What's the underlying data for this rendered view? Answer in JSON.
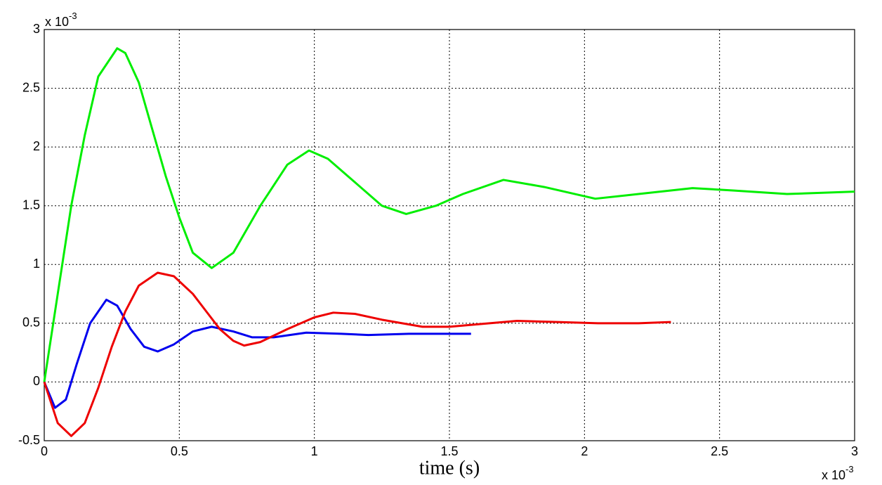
{
  "chart_data": {
    "type": "line",
    "xlabel": "time (s)",
    "x_multiplier": {
      "base": "x 10",
      "exponent": "-3"
    },
    "y_multiplier": {
      "base": "x 10",
      "exponent": "-3"
    },
    "xlim": [
      0,
      3
    ],
    "xticks": [
      0,
      0.5,
      1,
      1.5,
      2,
      2.5,
      3
    ],
    "ylim": [
      -0.5,
      3
    ],
    "yticks": [
      -0.5,
      0,
      0.5,
      1,
      1.5,
      2,
      2.5,
      3
    ],
    "grid": true,
    "series": [
      {
        "color": "#00ee00",
        "x": [
          0,
          0.05,
          0.1,
          0.15,
          0.2,
          0.27,
          0.3,
          0.35,
          0.4,
          0.45,
          0.5,
          0.55,
          0.62,
          0.7,
          0.8,
          0.9,
          0.98,
          1.05,
          1.15,
          1.25,
          1.34,
          1.45,
          1.55,
          1.7,
          1.85,
          2.04,
          2.2,
          2.4,
          2.55,
          2.75,
          3.0
        ],
        "values": [
          0,
          0.75,
          1.5,
          2.1,
          2.6,
          2.84,
          2.8,
          2.55,
          2.15,
          1.75,
          1.4,
          1.1,
          0.97,
          1.1,
          1.5,
          1.85,
          1.97,
          1.9,
          1.7,
          1.5,
          1.43,
          1.5,
          1.6,
          1.72,
          1.66,
          1.56,
          1.6,
          1.65,
          1.63,
          1.6,
          1.62
        ]
      },
      {
        "color": "#0000ee",
        "x": [
          0,
          0.04,
          0.08,
          0.12,
          0.17,
          0.23,
          0.27,
          0.32,
          0.37,
          0.42,
          0.48,
          0.55,
          0.62,
          0.7,
          0.77,
          0.85,
          0.97,
          1.1,
          1.2,
          1.35,
          1.58
        ],
        "values": [
          0,
          -0.22,
          -0.15,
          0.15,
          0.5,
          0.7,
          0.65,
          0.45,
          0.3,
          0.26,
          0.32,
          0.43,
          0.47,
          0.43,
          0.38,
          0.38,
          0.42,
          0.41,
          0.4,
          0.41,
          0.41
        ]
      },
      {
        "color": "#ee0000",
        "x": [
          0,
          0.05,
          0.1,
          0.15,
          0.2,
          0.25,
          0.3,
          0.35,
          0.42,
          0.48,
          0.55,
          0.6,
          0.65,
          0.7,
          0.74,
          0.8,
          0.9,
          1.0,
          1.07,
          1.15,
          1.25,
          1.4,
          1.5,
          1.6,
          1.75,
          1.9,
          2.05,
          2.2,
          2.32
        ],
        "values": [
          0,
          -0.35,
          -0.46,
          -0.35,
          -0.05,
          0.3,
          0.6,
          0.82,
          0.93,
          0.9,
          0.75,
          0.6,
          0.45,
          0.35,
          0.31,
          0.34,
          0.45,
          0.55,
          0.59,
          0.58,
          0.53,
          0.47,
          0.47,
          0.49,
          0.52,
          0.51,
          0.5,
          0.5,
          0.51
        ]
      }
    ]
  }
}
